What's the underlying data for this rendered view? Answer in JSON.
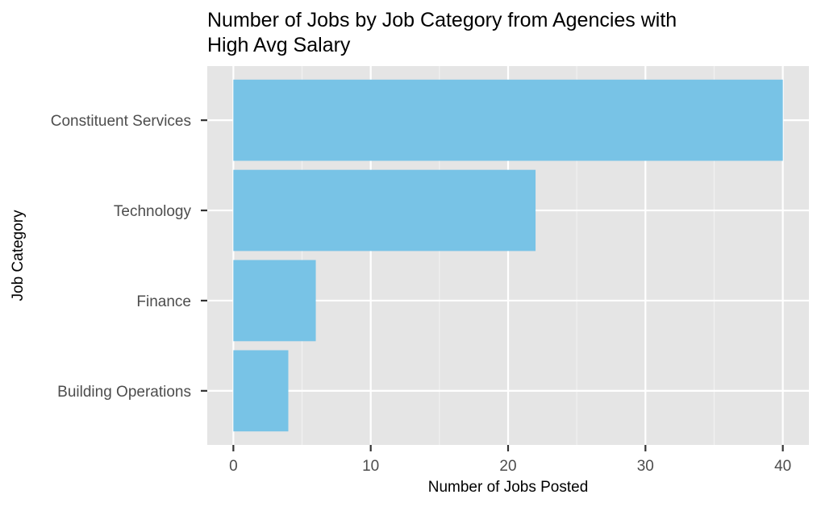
{
  "chart_data": {
    "type": "bar",
    "orientation": "horizontal",
    "title_lines": [
      "Number of Jobs by Job Category from Agencies with",
      "High Avg Salary"
    ],
    "xlabel": "Number of Jobs Posted",
    "ylabel": "Job Category",
    "categories": [
      "Constituent Services",
      "Technology",
      "Finance",
      "Building Operations"
    ],
    "values": [
      40,
      22,
      6,
      4
    ],
    "xlim": [
      -1.9,
      41.9
    ],
    "x_ticks": [
      0,
      10,
      20,
      30,
      40
    ],
    "grid": true,
    "legend": "none",
    "colors": {
      "bar": "#78c3e6",
      "panel": "#e5e5e5",
      "grid_major": "#ffffff",
      "grid_minor": "#f2f2f2",
      "tick_label": "#4d4d4d",
      "tick_mark": "#333333"
    }
  }
}
